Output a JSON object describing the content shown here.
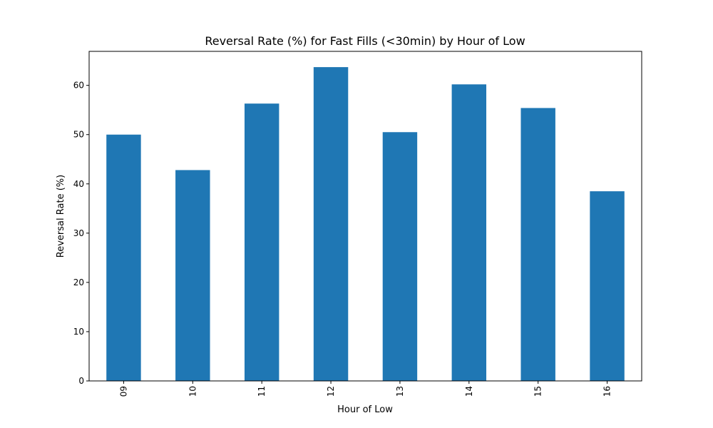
{
  "chart_data": {
    "type": "bar",
    "title": "Reversal Rate (%) for Fast Fills (<30min) by Hour of Low",
    "xlabel": "Hour of Low",
    "ylabel": "Reversal Rate (%)",
    "categories": [
      "09",
      "10",
      "11",
      "12",
      "13",
      "14",
      "15",
      "16"
    ],
    "values": [
      50.0,
      42.8,
      56.3,
      63.7,
      50.5,
      60.2,
      55.4,
      38.5
    ],
    "ylim": [
      0,
      66.9
    ],
    "yticks": [
      0,
      10,
      20,
      30,
      40,
      50,
      60
    ],
    "xtick_rotation": "vertical",
    "grid": false,
    "legend": "none",
    "bar_color": "#1f77b4"
  }
}
